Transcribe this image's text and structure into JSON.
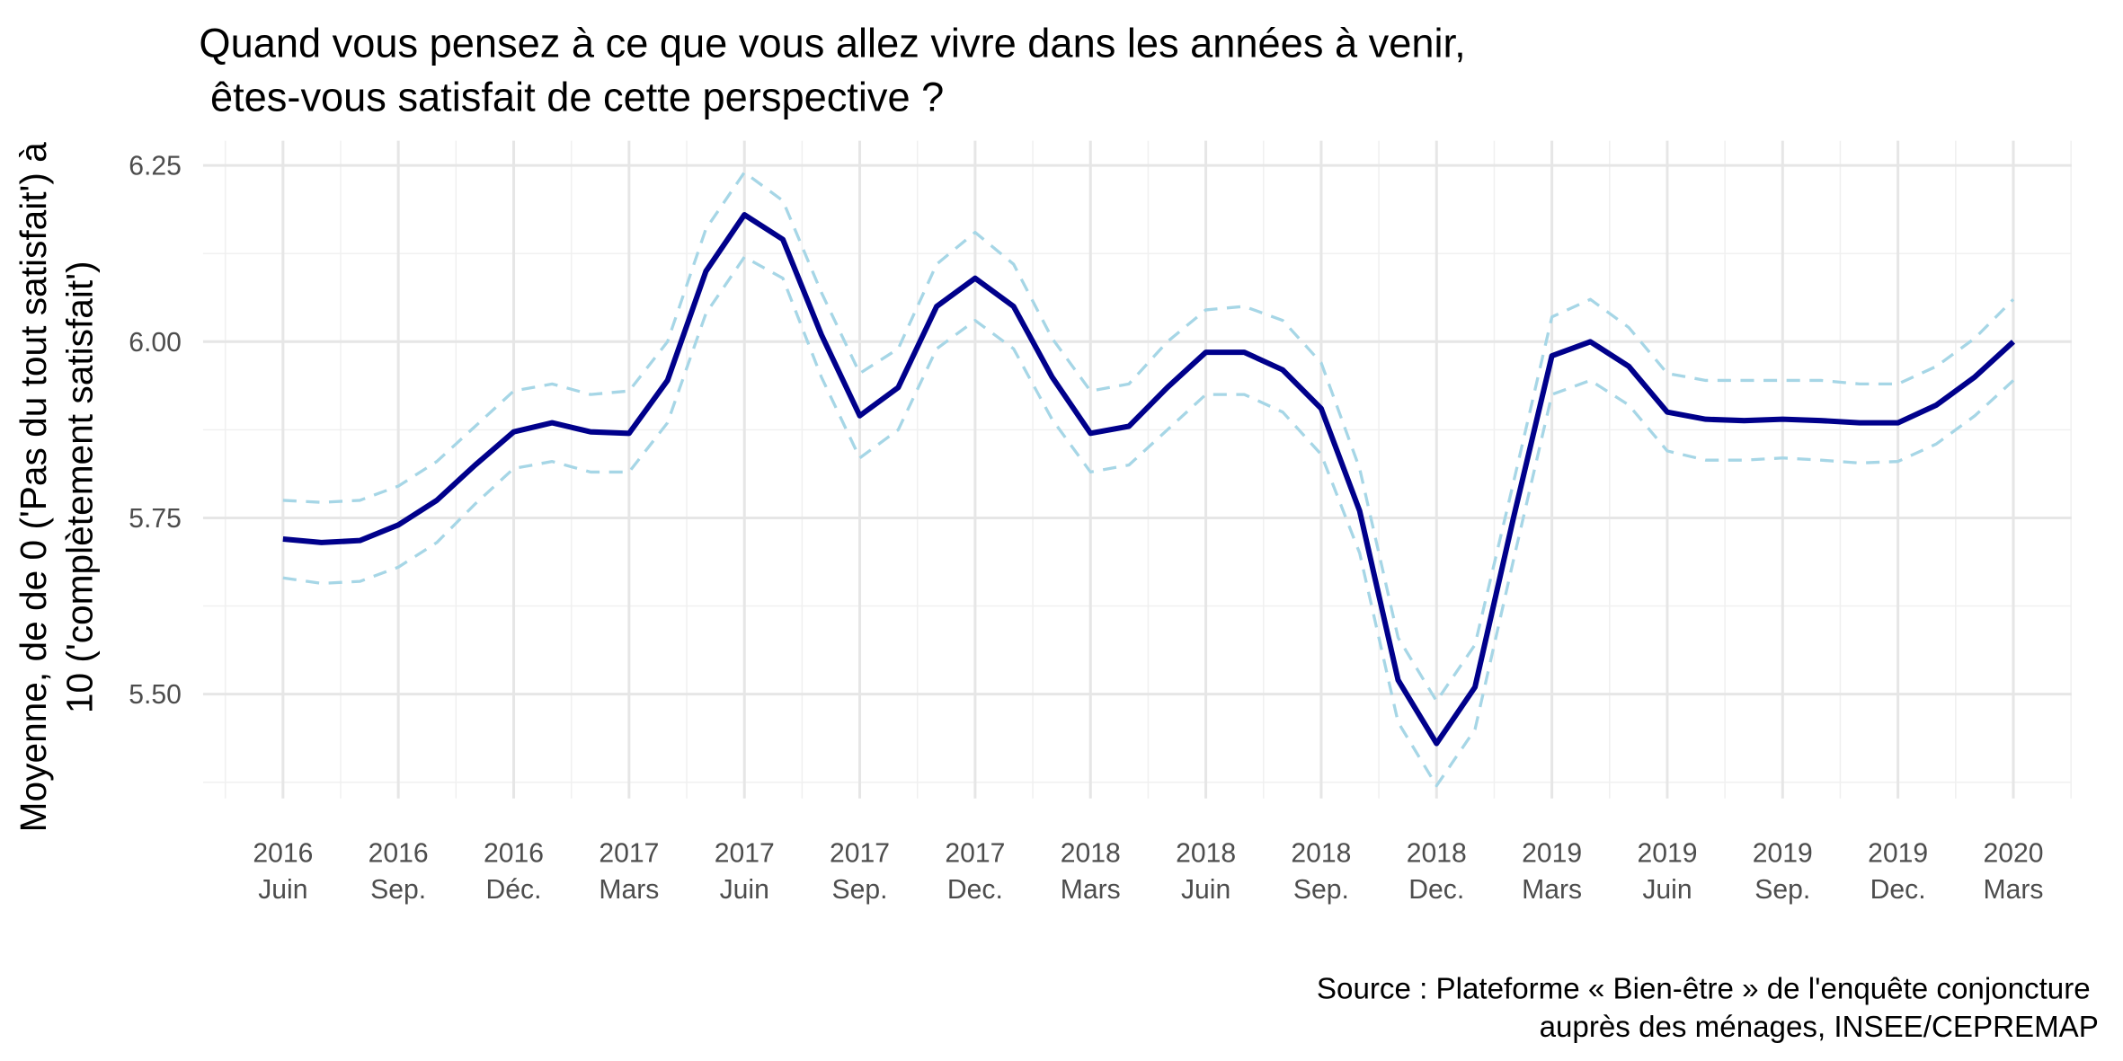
{
  "chart_data": {
    "type": "line",
    "title": [
      "Quand vous pensez à ce que vous allez vivre dans les années à venir,",
      " êtes-vous satisfait de cette perspective ?"
    ],
    "y_label": [
      "Moyenne, de de 0 ('Pas du tout satisfait') à",
      "10 ('complètement satisfait')"
    ],
    "caption": [
      "Source : Plateforme « Bien-être » de l'enquête conjoncture ",
      "auprès des ménages, INSEE/CEPREMAP"
    ],
    "categories": [
      "2016 Juin",
      null,
      null,
      "2016 Sep.",
      null,
      null,
      "2016 Déc.",
      null,
      null,
      "2017 Mars",
      null,
      null,
      "2017 Juin",
      null,
      null,
      "2017 Sep.",
      null,
      null,
      "2017 Dec.",
      null,
      null,
      "2018 Mars",
      null,
      null,
      "2018 Juin",
      null,
      null,
      "2018 Sep.",
      null,
      null,
      "2018 Dec.",
      null,
      null,
      "2019 Mars",
      null,
      null,
      "2019 Juin",
      null,
      null,
      "2019 Sep.",
      null,
      null,
      "2019 Dec.",
      null,
      null,
      "2020 Mars"
    ],
    "series": [
      {
        "color": "#a6d6e6",
        "dash": true,
        "values": [
          5.775,
          5.772,
          5.775,
          5.795,
          5.83,
          5.88,
          5.93,
          5.94,
          5.925,
          5.93,
          6.0,
          6.16,
          6.24,
          6.2,
          6.07,
          5.955,
          5.99,
          6.11,
          6.155,
          6.11,
          6.005,
          5.93,
          5.94,
          6.0,
          6.045,
          6.05,
          6.03,
          5.97,
          5.82,
          5.58,
          5.49,
          5.57,
          5.8,
          6.035,
          6.06,
          6.02,
          5.955,
          5.945,
          5.945,
          5.945,
          5.945,
          5.94,
          5.94,
          5.965,
          6.005,
          6.06
        ]
      },
      {
        "color": "#00008b",
        "dash": false,
        "values": [
          5.72,
          5.715,
          5.718,
          5.74,
          5.775,
          5.825,
          5.872,
          5.885,
          5.872,
          5.87,
          5.945,
          6.1,
          6.18,
          6.145,
          6.01,
          5.895,
          5.935,
          6.05,
          6.09,
          6.05,
          5.95,
          5.87,
          5.88,
          5.935,
          5.985,
          5.985,
          5.96,
          5.905,
          5.76,
          5.52,
          5.43,
          5.51,
          5.75,
          5.98,
          6.0,
          5.965,
          5.9,
          5.89,
          5.888,
          5.89,
          5.888,
          5.885,
          5.885,
          5.91,
          5.95,
          6.0
        ]
      },
      {
        "color": "#a6d6e6",
        "dash": true,
        "values": [
          5.665,
          5.657,
          5.66,
          5.68,
          5.715,
          5.77,
          5.82,
          5.83,
          5.815,
          5.815,
          5.885,
          6.04,
          6.12,
          6.09,
          5.95,
          5.835,
          5.875,
          5.99,
          6.03,
          5.99,
          5.89,
          5.815,
          5.825,
          5.875,
          5.925,
          5.925,
          5.9,
          5.84,
          5.7,
          5.46,
          5.37,
          5.45,
          5.69,
          5.925,
          5.945,
          5.91,
          5.845,
          5.832,
          5.832,
          5.835,
          5.832,
          5.828,
          5.83,
          5.855,
          5.895,
          5.945
        ]
      }
    ],
    "ylim": [
      5.352,
      6.285
    ],
    "yticks": [
      {
        "value": 5.5,
        "label": "5.50"
      },
      {
        "value": 5.75,
        "label": "5.75"
      },
      {
        "value": 6,
        "label": "6.00"
      },
      {
        "value": 6.25,
        "label": "6.25"
      }
    ],
    "grid": true,
    "minor_grid": true
  }
}
